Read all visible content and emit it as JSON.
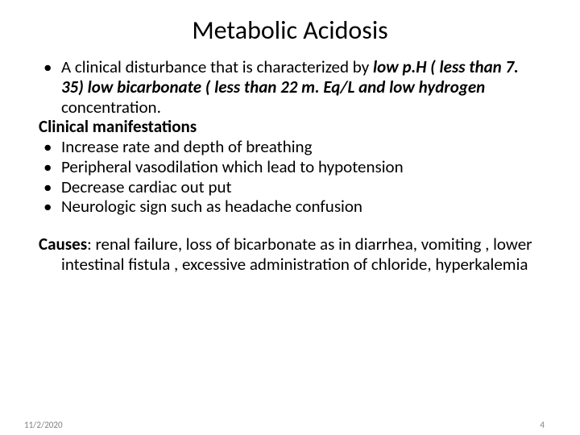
{
  "slide": {
    "title": "Metabolic Acidosis",
    "background_color": "#ffffff",
    "text_color": "#000000",
    "title_fontsize": 32,
    "body_fontsize": 21,
    "footer_fontsize": 11,
    "footer_color": "#7f7f7f",
    "bullet1_prefix": "A clinical disturbance that is characterized by ",
    "bullet1_bold": "low p.H ( less than 7. 35) low bicarbonate ( less than 22 m. Eq/L and low hydrogen",
    "bullet1_suffix": " concentration.",
    "clinical_heading": "Clinical manifestations",
    "bullet2": "Increase rate and depth of breathing",
    "bullet3": "Peripheral vasodilation which lead to hypotension",
    "bullet4": "Decrease cardiac out put",
    "bullet5": "Neurologic sign such as headache confusion",
    "causes_label": "Causes",
    "causes_text": ": renal failure, loss of bicarbonate as in diarrhea, vomiting , lower intestinal fistula , excessive administration of chloride, hyperkalemia",
    "footer_date": "11/2/2020",
    "footer_page": "4"
  }
}
